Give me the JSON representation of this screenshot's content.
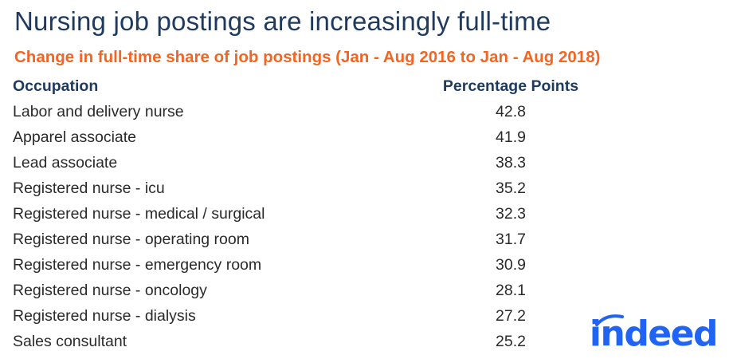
{
  "title": "Nursing job postings are increasingly full-time",
  "subtitle": "Change in full-time share of job postings (Jan - Aug 2016 to Jan - Aug 2018)",
  "colors": {
    "title": "#1f3a5f",
    "subtitle": "#f26522",
    "logo": "#2164f3"
  },
  "logo_text": "indeed",
  "chart_data": {
    "type": "table",
    "columns": [
      "Occupation",
      "Percentage Points"
    ],
    "rows": [
      {
        "occupation": "Labor and delivery nurse",
        "value": "42.8"
      },
      {
        "occupation": "Apparel associate",
        "value": "41.9"
      },
      {
        "occupation": "Lead associate",
        "value": "38.3"
      },
      {
        "occupation": "Registered nurse - icu",
        "value": "35.2"
      },
      {
        "occupation": "Registered nurse - medical / surgical",
        "value": "32.3"
      },
      {
        "occupation": "Registered nurse - operating room",
        "value": "31.7"
      },
      {
        "occupation": "Registered nurse - emergency room",
        "value": "30.9"
      },
      {
        "occupation": "Registered nurse - oncology",
        "value": "28.1"
      },
      {
        "occupation": "Registered nurse - dialysis",
        "value": "27.2"
      },
      {
        "occupation": "Sales consultant",
        "value": "25.2"
      }
    ]
  }
}
